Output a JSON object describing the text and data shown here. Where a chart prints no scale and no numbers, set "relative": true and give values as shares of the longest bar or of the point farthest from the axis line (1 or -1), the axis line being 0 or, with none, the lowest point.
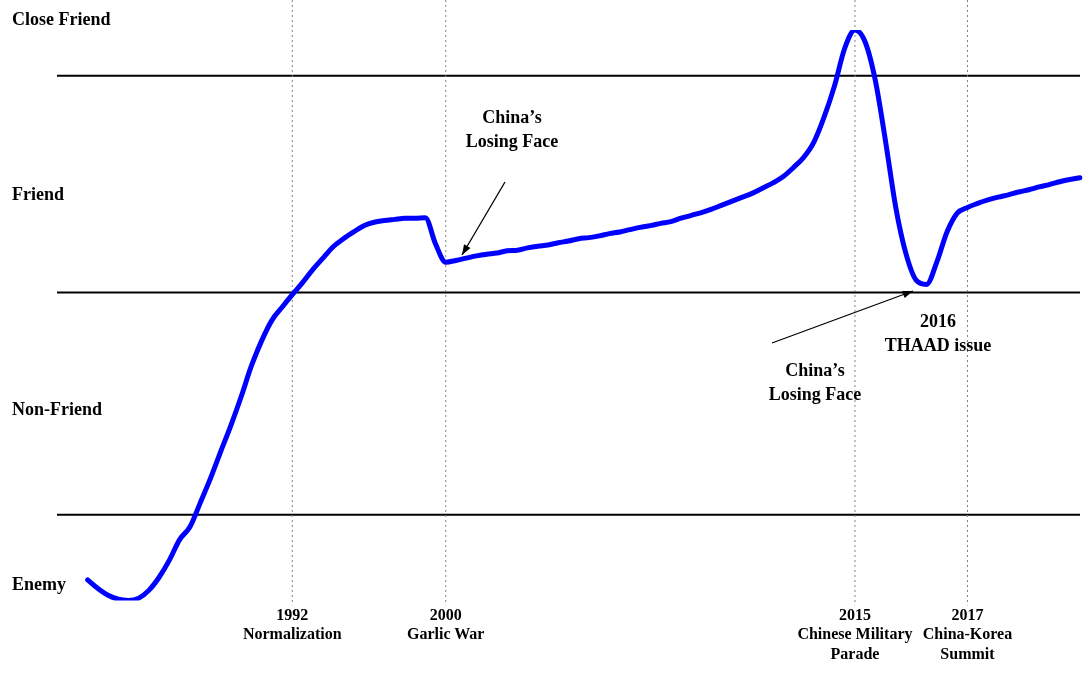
{
  "chart_data": {
    "type": "line",
    "relative": true,
    "grid": false,
    "legend": false,
    "marker": "none",
    "line_style": "solid",
    "categories": [
      null,
      null,
      null,
      null,
      null,
      null,
      null,
      null,
      null,
      null,
      null,
      null,
      null,
      null,
      null,
      null,
      null,
      null,
      null,
      null,
      null,
      null,
      null,
      "1992\nNormalization",
      null,
      null,
      null,
      null,
      null,
      null,
      null,
      null,
      null,
      null,
      null,
      null,
      null,
      null,
      "2000\nGarlic War",
      null,
      null,
      null,
      null,
      null,
      null,
      null,
      null,
      null,
      null,
      null,
      null,
      null,
      null,
      null,
      null,
      null,
      null,
      null,
      null,
      null,
      null,
      null,
      null,
      null,
      null,
      null,
      null,
      null,
      null,
      null,
      null,
      null,
      null,
      null,
      null,
      null,
      null,
      null,
      "2015\nChinese Military\nParade",
      null,
      null,
      null,
      null,
      null,
      null,
      null,
      null,
      null,
      null,
      "2017\nChina-Korea\nSummit",
      null,
      null,
      null,
      null,
      null,
      null,
      null,
      null,
      null,
      null,
      null
    ],
    "series": [
      {
        "color": "#0000ff",
        "values": [
          null,
          null,
          null,
          0.036,
          0.021,
          0.009,
          0.002,
          0,
          0.004,
          0.018,
          0.041,
          0.071,
          0.107,
          0.129,
          0.171,
          0.214,
          0.261,
          0.307,
          0.357,
          0.411,
          0.455,
          0.491,
          0.514,
          0.536,
          0.557,
          0.58,
          0.6,
          0.62,
          0.634,
          0.646,
          0.657,
          0.663,
          0.666,
          0.668,
          0.67,
          0.67,
          0.671,
          0.625,
          0.593,
          0.596,
          0.6,
          0.604,
          0.607,
          0.609,
          0.613,
          0.614,
          0.618,
          0.621,
          0.623,
          0.627,
          0.63,
          0.634,
          0.636,
          0.639,
          0.643,
          0.646,
          0.65,
          0.654,
          0.657,
          0.661,
          0.664,
          0.67,
          0.675,
          0.68,
          0.686,
          0.693,
          0.7,
          0.707,
          0.714,
          0.723,
          0.732,
          0.743,
          0.759,
          0.777,
          0.804,
          0.848,
          0.902,
          0.968,
          1,
          0.979,
          0.911,
          0.804,
          0.688,
          0.607,
          0.561,
          0.554,
          0.593,
          0.646,
          0.679,
          0.689,
          0.696,
          0.702,
          0.707,
          0.711,
          0.716,
          0.72,
          0.725,
          0.729,
          0.734,
          0.738,
          0.741
        ]
      }
    ],
    "ref_lines": [
      {
        "axis": "y",
        "value": 0.15,
        "color": "#000000",
        "line_style": "solid"
      },
      {
        "axis": "y",
        "value": 0.54,
        "color": "#000000",
        "line_style": "solid"
      },
      {
        "axis": "y",
        "value": 0.92,
        "color": "#000000",
        "line_style": "solid"
      },
      {
        "axis": "x",
        "value": "1992\nNormalization",
        "color": "#808080",
        "line_style": "dotted"
      },
      {
        "axis": "x",
        "value": "2000\nGarlic War",
        "color": "#808080",
        "line_style": "dotted"
      },
      {
        "axis": "x",
        "value": "2015\nChinese Military\nParade",
        "color": "#808080",
        "line_style": "dotted"
      },
      {
        "axis": "x",
        "value": "2017\nChina-Korea\nSummit",
        "color": "#808080",
        "line_style": "dotted"
      }
    ],
    "annotations": [
      "Close Friend",
      "Friend",
      "Non-Friend",
      "Enemy",
      "China’s\nLosing Face",
      "China’s\nLosing Face",
      "2016\nTHAAD issue"
    ]
  }
}
